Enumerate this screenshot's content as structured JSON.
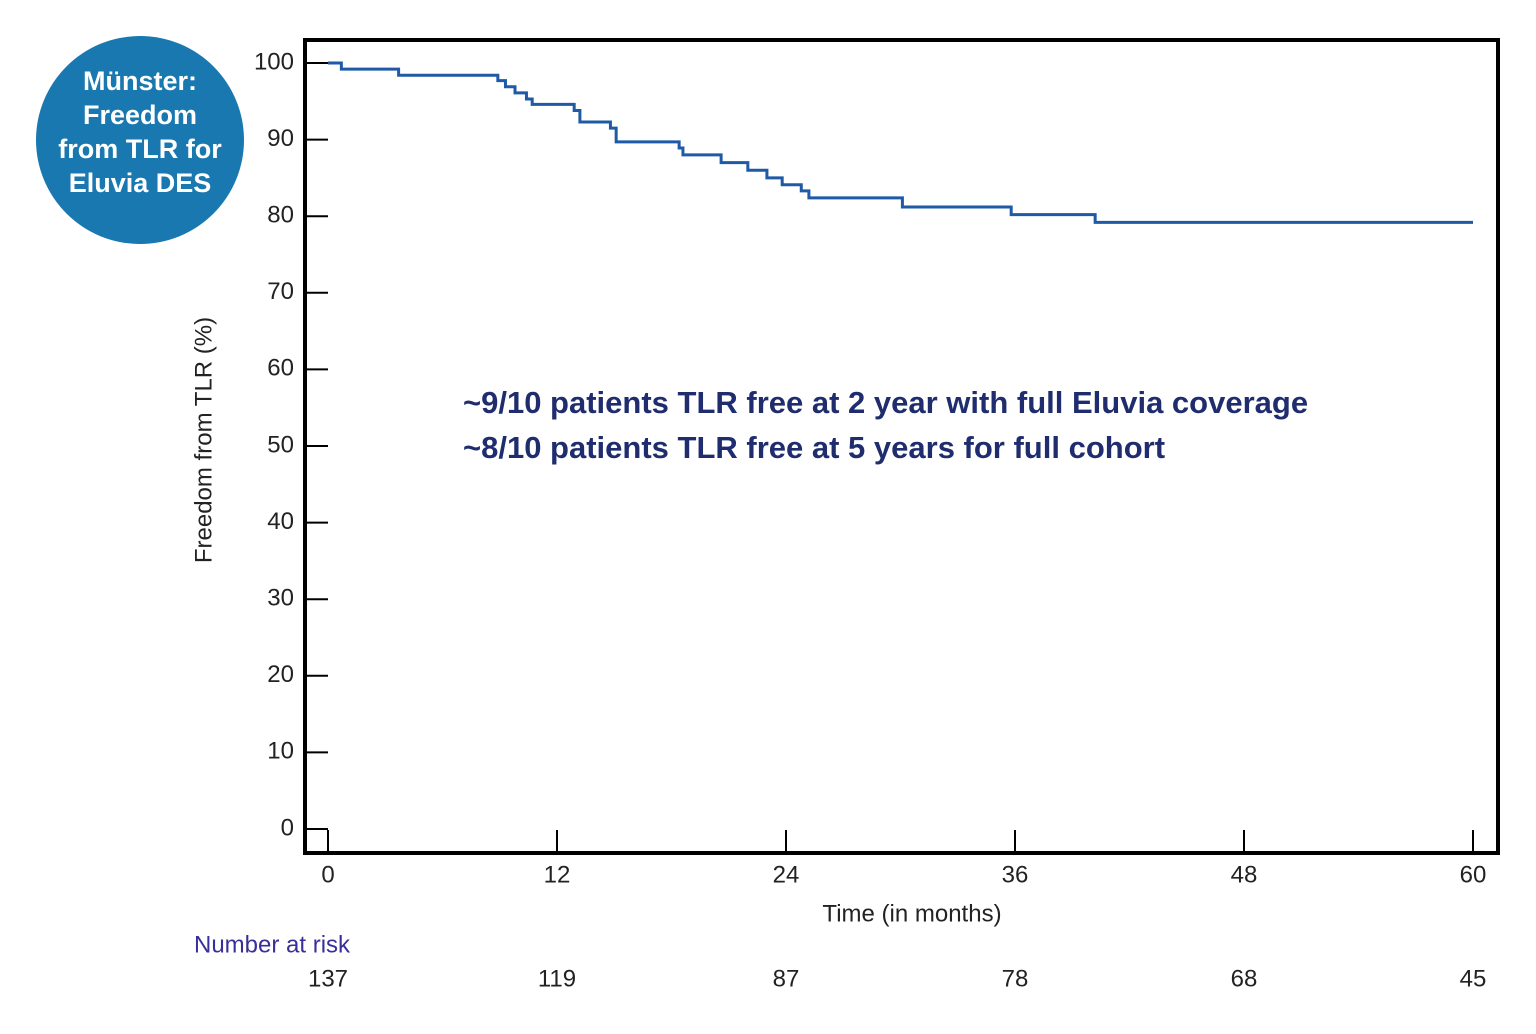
{
  "badge": [
    "Münster:",
    "Freedom",
    "from TLR for",
    "Eluvia DES"
  ],
  "chart_data": {
    "type": "step",
    "x_label": "Time (in months)",
    "y_label": "Freedom from TLR (%)",
    "annotations": [
      "~9/10 patients TLR free at 2 year with full Eluvia coverage",
      "~8/10 patients TLR free at 5 years for full cohort"
    ],
    "x": [
      0,
      0.7,
      3.7,
      8.9,
      9.3,
      9.8,
      10.4,
      10.7,
      12.9,
      13.2,
      14.8,
      15.1,
      18.4,
      18.6,
      20.6,
      22.0,
      23.0,
      23.8,
      24.8,
      25.2,
      30.1,
      35.8,
      40.2,
      60
    ],
    "series": [
      {
        "color": "#1f5aa6",
        "values": [
          100,
          99.2,
          98.4,
          97.7,
          96.9,
          96.1,
          95.3,
          94.6,
          93.8,
          92.3,
          91.5,
          89.7,
          88.9,
          88.0,
          87.0,
          86.0,
          85.0,
          84.1,
          83.3,
          82.4,
          81.2,
          80.2,
          79.2,
          79.2
        ]
      }
    ],
    "xlim": [
      0,
      60
    ],
    "xticks": [
      0,
      12,
      24,
      36,
      48,
      60
    ],
    "ylim": [
      0,
      100
    ],
    "yticks": [
      0,
      10,
      20,
      30,
      40,
      50,
      60,
      70,
      80,
      90,
      100
    ],
    "risk_table": {
      "label": "Number at risk",
      "values": [
        137,
        119,
        87,
        78,
        68,
        45
      ]
    }
  }
}
